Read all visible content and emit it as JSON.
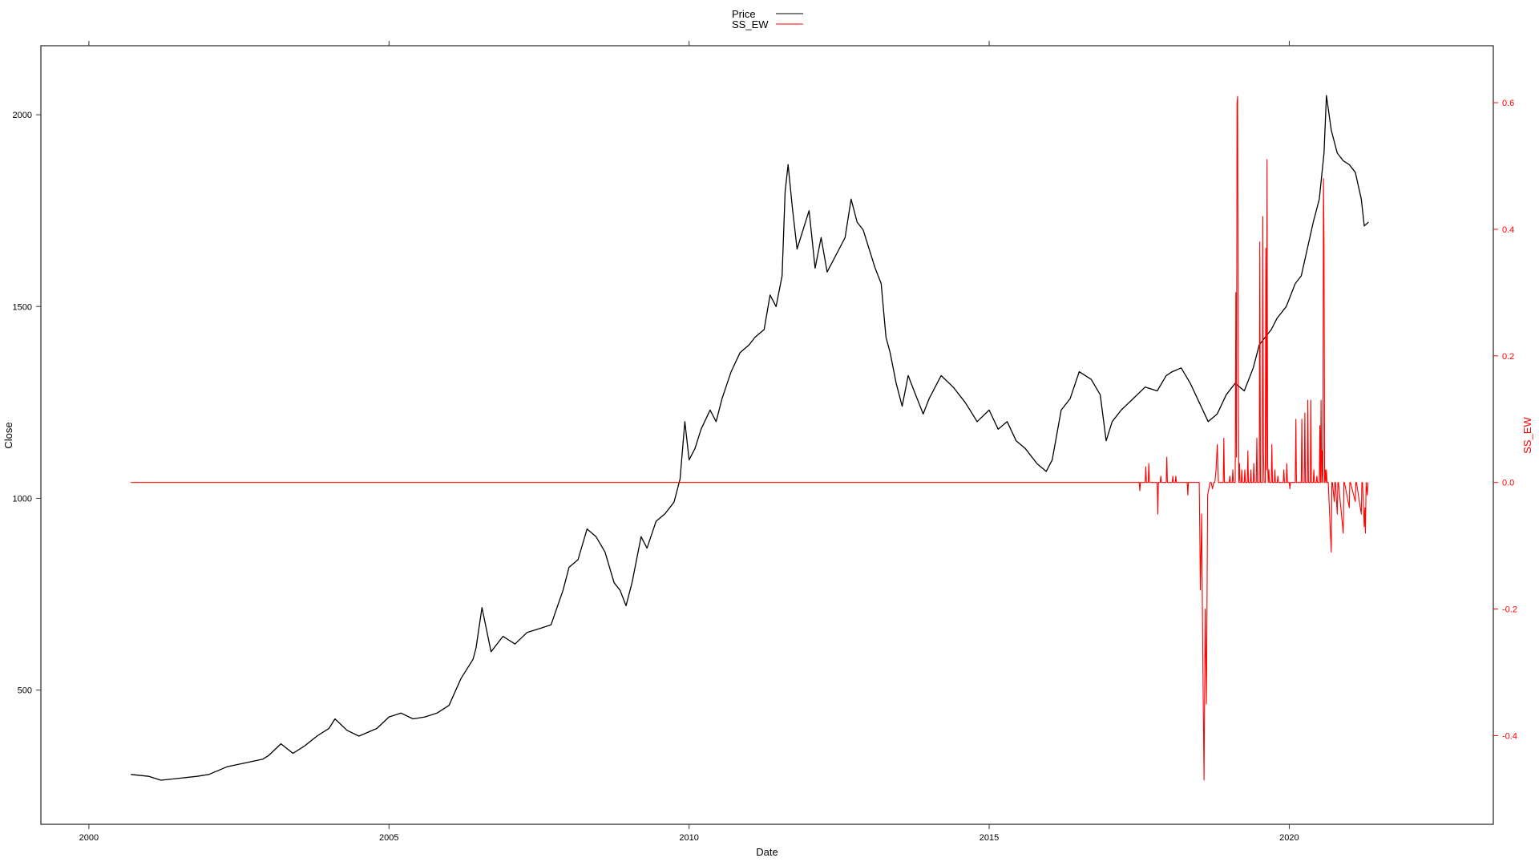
{
  "chart_data": {
    "type": "line",
    "xlabel": "Date",
    "ylabel_left": "Close",
    "ylabel_right": "SS_EW",
    "xlim": [
      1999.2,
      2023.4
    ],
    "ylim_left": [
      150,
      2180
    ],
    "ylim_right": [
      -0.54,
      0.69
    ],
    "x_ticks": [
      2000,
      2005,
      2010,
      2015,
      2020
    ],
    "x_tick_labels": [
      "2000",
      "2005",
      "2010",
      "2015",
      "2020"
    ],
    "y_left_ticks": [
      500,
      1000,
      1500,
      2000
    ],
    "y_left_tick_labels": [
      "500",
      "1000",
      "1500",
      "2000"
    ],
    "y_right_ticks": [
      -0.4,
      -0.2,
      0.0,
      0.2,
      0.4,
      0.6
    ],
    "y_right_tick_labels": [
      "-0.4",
      "-0.2",
      "0.0",
      "0.2",
      "0.4",
      "0.6"
    ],
    "legend": {
      "placement": "top-center",
      "entries": [
        {
          "label": "Price",
          "color": "#000000"
        },
        {
          "label": "SS_EW",
          "color": "#ff0000"
        }
      ]
    },
    "colors": {
      "price": "#000000",
      "ss_ew": "#ff0000",
      "right_axis": "#ff0000"
    },
    "grid": false,
    "series": [
      {
        "name": "Price",
        "axis": "left",
        "x": [
          2000.7,
          2001.0,
          2001.2,
          2001.5,
          2001.8,
          2002.0,
          2002.3,
          2002.6,
          2002.9,
          2003.0,
          2003.2,
          2003.4,
          2003.6,
          2003.8,
          2004.0,
          2004.1,
          2004.3,
          2004.5,
          2004.8,
          2005.0,
          2005.2,
          2005.4,
          2005.6,
          2005.8,
          2006.0,
          2006.2,
          2006.4,
          2006.45,
          2006.55,
          2006.7,
          2006.9,
          2007.1,
          2007.3,
          2007.5,
          2007.7,
          2007.9,
          2008.0,
          2008.15,
          2008.3,
          2008.45,
          2008.6,
          2008.75,
          2008.85,
          2008.95,
          2009.05,
          2009.2,
          2009.3,
          2009.45,
          2009.6,
          2009.75,
          2009.85,
          2009.93,
          2010.0,
          2010.1,
          2010.2,
          2010.35,
          2010.45,
          2010.55,
          2010.7,
          2010.85,
          2011.0,
          2011.1,
          2011.25,
          2011.35,
          2011.45,
          2011.55,
          2011.6,
          2011.65,
          2011.72,
          2011.8,
          2011.9,
          2012.0,
          2012.1,
          2012.2,
          2012.3,
          2012.4,
          2012.5,
          2012.6,
          2012.7,
          2012.8,
          2012.9,
          2013.0,
          2013.1,
          2013.2,
          2013.28,
          2013.35,
          2013.45,
          2013.55,
          2013.65,
          2013.75,
          2013.9,
          2014.0,
          2014.2,
          2014.4,
          2014.6,
          2014.8,
          2015.0,
          2015.15,
          2015.3,
          2015.45,
          2015.6,
          2015.8,
          2015.95,
          2016.05,
          2016.2,
          2016.35,
          2016.5,
          2016.7,
          2016.85,
          2016.95,
          2017.05,
          2017.2,
          2017.4,
          2017.6,
          2017.8,
          2017.95,
          2018.05,
          2018.2,
          2018.35,
          2018.5,
          2018.65,
          2018.8,
          2018.95,
          2019.1,
          2019.25,
          2019.4,
          2019.5,
          2019.6,
          2019.7,
          2019.8,
          2019.95,
          2020.1,
          2020.2,
          2020.3,
          2020.4,
          2020.5,
          2020.58,
          2020.62,
          2020.7,
          2020.8,
          2020.9,
          2021.0,
          2021.1,
          2021.2,
          2021.25,
          2021.32
        ],
        "values": [
          280,
          275,
          265,
          270,
          275,
          280,
          300,
          310,
          320,
          330,
          360,
          335,
          355,
          380,
          400,
          425,
          395,
          380,
          400,
          430,
          440,
          425,
          430,
          440,
          460,
          530,
          580,
          610,
          715,
          600,
          640,
          620,
          650,
          660,
          670,
          760,
          820,
          840,
          920,
          900,
          860,
          780,
          760,
          720,
          780,
          900,
          870,
          940,
          960,
          990,
          1050,
          1200,
          1100,
          1130,
          1180,
          1230,
          1200,
          1260,
          1330,
          1380,
          1400,
          1420,
          1440,
          1530,
          1500,
          1580,
          1800,
          1870,
          1760,
          1650,
          1700,
          1750,
          1600,
          1680,
          1590,
          1620,
          1650,
          1680,
          1780,
          1720,
          1700,
          1650,
          1600,
          1560,
          1420,
          1380,
          1300,
          1240,
          1320,
          1280,
          1220,
          1260,
          1320,
          1290,
          1250,
          1200,
          1230,
          1180,
          1200,
          1150,
          1130,
          1090,
          1070,
          1100,
          1230,
          1260,
          1330,
          1310,
          1270,
          1150,
          1200,
          1230,
          1260,
          1290,
          1280,
          1320,
          1330,
          1340,
          1300,
          1250,
          1200,
          1220,
          1270,
          1300,
          1280,
          1340,
          1400,
          1420,
          1440,
          1470,
          1500,
          1560,
          1580,
          1650,
          1720,
          1780,
          1900,
          2050,
          1960,
          1900,
          1880,
          1870,
          1850,
          1780,
          1710,
          1720
        ]
      },
      {
        "name": "SS_EW",
        "axis": "right",
        "x": [
          2000.7,
          2017.5,
          2017.51,
          2017.52,
          2017.6,
          2017.61,
          2017.62,
          2017.65,
          2017.66,
          2017.67,
          2017.75,
          2017.8,
          2017.81,
          2017.82,
          2017.85,
          2017.86,
          2017.87,
          2017.95,
          2017.96,
          2017.97,
          2018.05,
          2018.06,
          2018.07,
          2018.1,
          2018.11,
          2018.12,
          2018.2,
          2018.3,
          2018.31,
          2018.32,
          2018.5,
          2018.52,
          2018.54,
          2018.56,
          2018.58,
          2018.6,
          2018.62,
          2018.64,
          2018.66,
          2018.68,
          2018.7,
          2018.72,
          2018.74,
          2018.76,
          2018.78,
          2018.8,
          2018.82,
          2018.84,
          2018.9,
          2018.91,
          2018.92,
          2019.0,
          2019.01,
          2019.02,
          2019.05,
          2019.06,
          2019.07,
          2019.1,
          2019.11,
          2019.12,
          2019.13,
          2019.14,
          2019.15,
          2019.16,
          2019.17,
          2019.18,
          2019.2,
          2019.21,
          2019.22,
          2019.25,
          2019.26,
          2019.27,
          2019.3,
          2019.31,
          2019.32,
          2019.35,
          2019.36,
          2019.37,
          2019.4,
          2019.41,
          2019.42,
          2019.45,
          2019.46,
          2019.47,
          2019.5,
          2019.51,
          2019.52,
          2019.55,
          2019.56,
          2019.57,
          2019.58,
          2019.6,
          2019.61,
          2019.62,
          2019.63,
          2019.64,
          2019.65,
          2019.66,
          2019.67,
          2019.68,
          2019.7,
          2019.71,
          2019.72,
          2019.75,
          2019.76,
          2019.77,
          2019.8,
          2019.81,
          2019.82,
          2019.85,
          2019.86,
          2019.87,
          2019.9,
          2019.91,
          2019.92,
          2019.95,
          2019.96,
          2019.97,
          2020.0,
          2020.01,
          2020.02,
          2020.1,
          2020.11,
          2020.12,
          2020.2,
          2020.21,
          2020.22,
          2020.25,
          2020.26,
          2020.27,
          2020.3,
          2020.31,
          2020.32,
          2020.35,
          2020.36,
          2020.37,
          2020.4,
          2020.41,
          2020.42,
          2020.45,
          2020.46,
          2020.47,
          2020.5,
          2020.51,
          2020.52,
          2020.53,
          2020.54,
          2020.55,
          2020.56,
          2020.57,
          2020.58,
          2020.59,
          2020.6,
          2020.61,
          2020.62,
          2020.63,
          2020.64,
          2020.65,
          2020.7,
          2020.71,
          2020.72,
          2020.75,
          2020.76,
          2020.77,
          2020.8,
          2020.81,
          2020.82,
          2020.9,
          2020.91,
          2020.92,
          2021.0,
          2021.01,
          2021.02,
          2021.1,
          2021.11,
          2021.12,
          2021.2,
          2021.21,
          2021.22,
          2021.25,
          2021.26,
          2021.27,
          2021.28,
          2021.3,
          2021.31
        ],
        "values": [
          0.0,
          0.0,
          -0.013,
          0.0,
          0.0,
          0.025,
          0.0,
          0.0,
          0.03,
          0.0,
          0.0,
          0.0,
          -0.05,
          0.0,
          0.0,
          0.01,
          0.0,
          0.0,
          0.04,
          0.0,
          0.0,
          0.01,
          0.0,
          0.0,
          0.01,
          0.0,
          0.0,
          0.0,
          -0.02,
          0.0,
          0.0,
          -0.17,
          -0.05,
          -0.28,
          -0.47,
          -0.2,
          -0.35,
          -0.02,
          -0.01,
          0.0,
          0.0,
          -0.01,
          0.0,
          0.0,
          0.02,
          0.06,
          0.0,
          0.0,
          0.0,
          0.07,
          0.0,
          0.0,
          0.01,
          0.0,
          0.0,
          0.02,
          0.0,
          0.0,
          0.3,
          0.04,
          0.6,
          0.61,
          0.2,
          0.0,
          0.03,
          0.0,
          0.0,
          0.02,
          0.0,
          0.0,
          0.02,
          0.0,
          0.0,
          0.05,
          0.0,
          0.0,
          0.02,
          0.0,
          0.0,
          0.03,
          0.0,
          0.0,
          0.07,
          0.0,
          0.0,
          0.38,
          0.0,
          0.0,
          0.42,
          0.05,
          0.0,
          0.0,
          0.37,
          0.02,
          0.51,
          0.03,
          0.0,
          0.02,
          0.0,
          0.0,
          0.0,
          0.06,
          0.0,
          0.0,
          0.02,
          0.0,
          0.0,
          0.01,
          0.0,
          0.0,
          0.0,
          0.0,
          0.0,
          0.02,
          0.0,
          0.0,
          0.03,
          0.0,
          0.0,
          -0.01,
          0.0,
          0.0,
          0.1,
          0.0,
          0.0,
          0.1,
          0.0,
          0.0,
          0.11,
          0.0,
          0.0,
          0.13,
          0.0,
          0.0,
          0.13,
          0.0,
          0.0,
          0.02,
          0.0,
          0.0,
          0.01,
          0.0,
          0.0,
          0.09,
          0.0,
          0.13,
          0.0,
          0.05,
          0.0,
          0.48,
          0.38,
          0.0,
          0.02,
          0.0,
          0.02,
          0.0,
          0.0,
          0.0,
          -0.11,
          0.0,
          0.0,
          -0.03,
          0.0,
          0.0,
          -0.05,
          0.0,
          0.0,
          -0.08,
          0.0,
          0.0,
          -0.04,
          0.0,
          0.0,
          -0.03,
          0.0,
          0.0,
          -0.05,
          0.0,
          0.0,
          -0.07,
          -0.04,
          -0.08,
          0.0,
          -0.02,
          0.0
        ]
      }
    ]
  }
}
